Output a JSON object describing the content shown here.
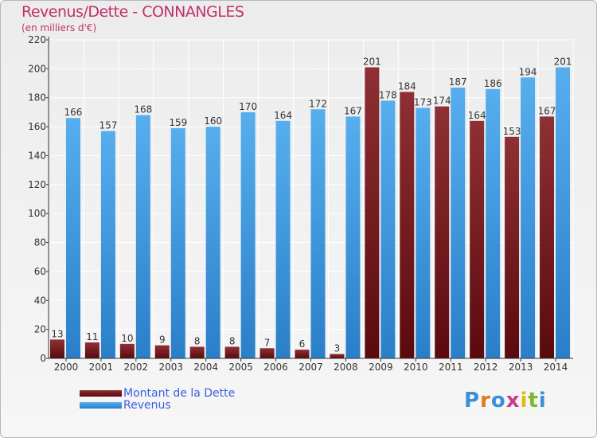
{
  "chart_data": {
    "type": "bar",
    "title": "Revenus/Dette - CONNANGLES",
    "subtitle": "(en milliers d'€)",
    "categories": [
      "2000",
      "2001",
      "2002",
      "2003",
      "2004",
      "2005",
      "2006",
      "2007",
      "2008",
      "2009",
      "2010",
      "2011",
      "2012",
      "2013",
      "2014"
    ],
    "series": [
      {
        "name": "Montant de la Dette",
        "color": "#7a1a1e",
        "values": [
          13,
          11,
          10,
          9,
          8,
          8,
          7,
          6,
          3,
          201,
          184,
          174,
          164,
          153,
          167
        ]
      },
      {
        "name": "Revenus",
        "color": "#3a9be6",
        "values": [
          166,
          157,
          168,
          159,
          160,
          170,
          164,
          172,
          167,
          178,
          173,
          187,
          186,
          194,
          201
        ]
      }
    ],
    "ylim": [
      0,
      220
    ],
    "yticks": [
      0,
      20,
      40,
      60,
      80,
      100,
      120,
      140,
      160,
      180,
      200,
      220
    ],
    "grid": true,
    "legend": "bottom-left"
  },
  "logo": {
    "letters": [
      "P",
      "r",
      "o",
      "x",
      "i",
      "t",
      "i"
    ],
    "colors": [
      "#3a8fd8",
      "#e07b1a",
      "#3a8fd8",
      "#c83c8c",
      "#e0b81a",
      "#7ab82a",
      "#3a8fd8"
    ]
  }
}
